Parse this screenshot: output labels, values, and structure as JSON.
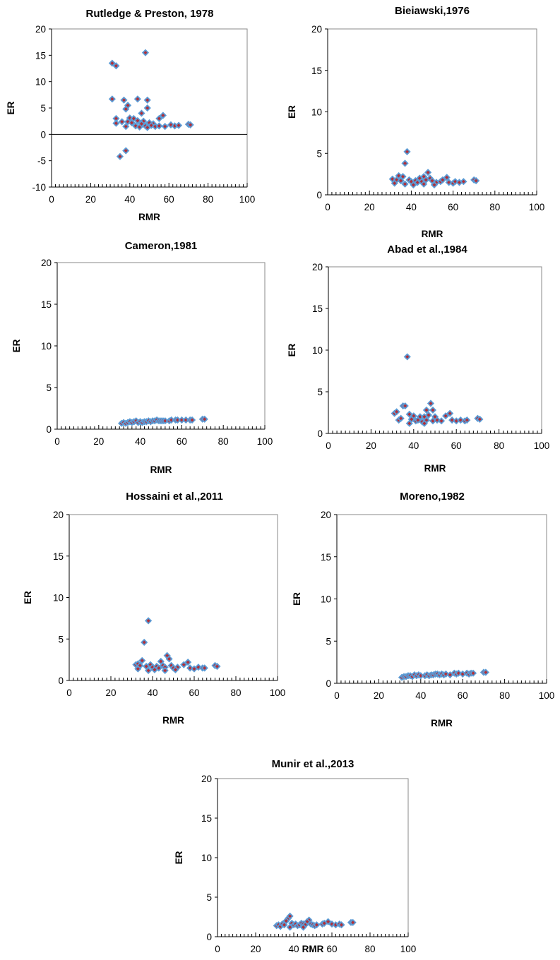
{
  "chart_data": [
    {
      "type": "scatter",
      "title": "Rutledge & Preston, 1978",
      "xlabel": "RMR",
      "ylabel": "ER",
      "xlim": [
        0,
        100
      ],
      "ylim": [
        -10,
        20
      ],
      "xticks": [
        "0",
        "20",
        "40",
        "60",
        "80",
        "100"
      ],
      "yticks": [
        "-10",
        "-5",
        "0",
        "5",
        "10",
        "15",
        "20"
      ],
      "grid": false,
      "marker_colors": {
        "outer": "#5b9bd5",
        "inner": "#b0303a"
      },
      "points": [
        [
          31,
          13.5
        ],
        [
          33,
          13.0
        ],
        [
          48,
          15.5
        ],
        [
          31,
          6.7
        ],
        [
          37,
          6.5
        ],
        [
          44,
          6.7
        ],
        [
          49,
          6.5
        ],
        [
          39,
          5.5
        ],
        [
          38,
          4.8
        ],
        [
          49,
          5.0
        ],
        [
          46,
          4.0
        ],
        [
          33,
          3.0
        ],
        [
          40,
          3.1
        ],
        [
          57,
          3.6
        ],
        [
          55,
          3.0
        ],
        [
          42,
          3.0
        ],
        [
          33,
          2.1
        ],
        [
          36,
          2.4
        ],
        [
          39,
          2.4
        ],
        [
          41,
          2.2
        ],
        [
          44,
          2.6
        ],
        [
          47,
          2.5
        ],
        [
          50,
          2.2
        ],
        [
          52,
          2.0
        ],
        [
          38,
          1.5
        ],
        [
          43,
          1.6
        ],
        [
          45,
          1.4
        ],
        [
          46,
          2.0
        ],
        [
          48,
          1.6
        ],
        [
          49,
          1.3
        ],
        [
          51,
          1.7
        ],
        [
          53,
          1.5
        ],
        [
          55,
          1.6
        ],
        [
          58,
          1.5
        ],
        [
          61,
          1.8
        ],
        [
          63,
          1.6
        ],
        [
          65,
          1.7
        ],
        [
          70,
          1.9
        ],
        [
          71,
          1.8
        ],
        [
          38,
          -3.1
        ],
        [
          35,
          -4.2
        ]
      ]
    },
    {
      "type": "scatter",
      "title": "Bieiawski,1976",
      "xlabel": "RMR",
      "ylabel": "ER",
      "xlim": [
        0,
        100
      ],
      "ylim": [
        0,
        20
      ],
      "xticks": [
        "0",
        "20",
        "40",
        "60",
        "80",
        "100"
      ],
      "yticks": [
        "0",
        "5",
        "10",
        "15",
        "20"
      ],
      "grid": false,
      "points": [
        [
          38,
          5.2
        ],
        [
          37,
          3.8
        ],
        [
          48,
          2.7
        ],
        [
          46,
          2.2
        ],
        [
          34,
          2.3
        ],
        [
          36,
          2.2
        ],
        [
          57,
          2.1
        ],
        [
          31,
          1.9
        ],
        [
          33,
          1.8
        ],
        [
          35,
          1.7
        ],
        [
          39,
          1.8
        ],
        [
          40,
          1.6
        ],
        [
          42,
          1.7
        ],
        [
          43,
          1.5
        ],
        [
          44,
          2.0
        ],
        [
          45,
          1.6
        ],
        [
          47,
          1.8
        ],
        [
          49,
          2.0
        ],
        [
          50,
          1.7
        ],
        [
          52,
          1.5
        ],
        [
          54,
          1.6
        ],
        [
          55,
          1.8
        ],
        [
          58,
          1.5
        ],
        [
          60,
          1.4
        ],
        [
          61,
          1.6
        ],
        [
          63,
          1.5
        ],
        [
          65,
          1.6
        ],
        [
          70,
          1.8
        ],
        [
          71,
          1.7
        ],
        [
          32,
          1.4
        ],
        [
          37,
          1.3
        ],
        [
          41,
          1.2
        ],
        [
          46,
          1.3
        ],
        [
          51,
          1.2
        ]
      ]
    },
    {
      "type": "scatter",
      "title": "Cameron,1981",
      "xlabel": "RMR",
      "ylabel": "ER",
      "xlim": [
        0,
        100
      ],
      "ylim": [
        0,
        20
      ],
      "xticks": [
        "0",
        "20",
        "40",
        "60",
        "80",
        "100"
      ],
      "yticks": [
        "0",
        "5",
        "10",
        "15",
        "20"
      ],
      "grid": false,
      "points": [
        [
          31,
          0.7
        ],
        [
          32,
          0.8
        ],
        [
          33,
          0.7
        ],
        [
          34,
          0.8
        ],
        [
          35,
          0.9
        ],
        [
          36,
          0.8
        ],
        [
          37,
          0.9
        ],
        [
          38,
          1.0
        ],
        [
          39,
          0.8
        ],
        [
          40,
          0.9
        ],
        [
          41,
          0.8
        ],
        [
          42,
          0.9
        ],
        [
          43,
          0.9
        ],
        [
          44,
          1.0
        ],
        [
          45,
          0.9
        ],
        [
          46,
          1.0
        ],
        [
          47,
          1.0
        ],
        [
          48,
          1.1
        ],
        [
          49,
          1.0
        ],
        [
          50,
          1.0
        ],
        [
          51,
          1.0
        ],
        [
          52,
          1.0
        ],
        [
          54,
          1.0
        ],
        [
          55,
          1.1
        ],
        [
          57,
          1.1
        ],
        [
          58,
          1.1
        ],
        [
          60,
          1.1
        ],
        [
          62,
          1.1
        ],
        [
          64,
          1.1
        ],
        [
          65,
          1.1
        ],
        [
          70,
          1.2
        ],
        [
          71,
          1.2
        ]
      ]
    },
    {
      "type": "scatter",
      "title": "Abad et al.,1984",
      "xlabel": "RMR",
      "ylabel": "ER",
      "xlim": [
        0,
        100
      ],
      "ylim": [
        0,
        20
      ],
      "xticks": [
        "0",
        "20",
        "40",
        "60",
        "80",
        "100"
      ],
      "yticks": [
        "0",
        "5",
        "10",
        "15",
        "20"
      ],
      "grid": false,
      "points": [
        [
          37,
          9.2
        ],
        [
          48,
          3.6
        ],
        [
          35,
          3.3
        ],
        [
          36,
          3.3
        ],
        [
          46,
          2.8
        ],
        [
          31,
          2.4
        ],
        [
          32,
          2.6
        ],
        [
          49,
          2.8
        ],
        [
          57,
          2.4
        ],
        [
          38,
          2.3
        ],
        [
          40,
          2.1
        ],
        [
          43,
          2.0
        ],
        [
          45,
          2.0
        ],
        [
          47,
          2.2
        ],
        [
          50,
          2.0
        ],
        [
          55,
          2.1
        ],
        [
          33,
          1.6
        ],
        [
          34,
          1.8
        ],
        [
          39,
          1.7
        ],
        [
          41,
          1.5
        ],
        [
          42,
          1.6
        ],
        [
          44,
          1.4
        ],
        [
          46,
          1.6
        ],
        [
          49,
          1.5
        ],
        [
          51,
          1.6
        ],
        [
          53,
          1.5
        ],
        [
          58,
          1.6
        ],
        [
          60,
          1.5
        ],
        [
          62,
          1.6
        ],
        [
          64,
          1.5
        ],
        [
          65,
          1.6
        ],
        [
          70,
          1.8
        ],
        [
          71,
          1.7
        ],
        [
          38,
          1.2
        ],
        [
          45,
          1.2
        ]
      ]
    },
    {
      "type": "scatter",
      "title": "Hossaini et al.,2011",
      "xlabel": "RMR",
      "ylabel": "ER",
      "xlim": [
        0,
        100
      ],
      "ylim": [
        0,
        20
      ],
      "xticks": [
        "0",
        "20",
        "40",
        "60",
        "80",
        "100"
      ],
      "yticks": [
        "0",
        "5",
        "10",
        "15",
        "20"
      ],
      "grid": false,
      "points": [
        [
          38,
          7.2
        ],
        [
          36,
          4.6
        ],
        [
          47,
          3.0
        ],
        [
          48,
          2.6
        ],
        [
          35,
          2.4
        ],
        [
          44,
          2.3
        ],
        [
          57,
          2.2
        ],
        [
          32,
          1.9
        ],
        [
          33,
          2.0
        ],
        [
          34,
          1.8
        ],
        [
          37,
          1.7
        ],
        [
          39,
          1.9
        ],
        [
          40,
          1.6
        ],
        [
          42,
          1.7
        ],
        [
          43,
          1.5
        ],
        [
          45,
          1.8
        ],
        [
          46,
          1.6
        ],
        [
          49,
          1.8
        ],
        [
          50,
          1.5
        ],
        [
          52,
          1.6
        ],
        [
          55,
          1.9
        ],
        [
          58,
          1.5
        ],
        [
          60,
          1.4
        ],
        [
          62,
          1.6
        ],
        [
          64,
          1.5
        ],
        [
          65,
          1.5
        ],
        [
          70,
          1.8
        ],
        [
          71,
          1.7
        ],
        [
          33,
          1.4
        ],
        [
          38,
          1.2
        ],
        [
          41,
          1.3
        ],
        [
          46,
          1.2
        ],
        [
          51,
          1.3
        ]
      ]
    },
    {
      "type": "scatter",
      "title": "Moreno,1982",
      "xlabel": "RMR",
      "ylabel": "ER",
      "xlim": [
        0,
        100
      ],
      "ylim": [
        0,
        20
      ],
      "xticks": [
        "0",
        "20",
        "40",
        "60",
        "80",
        "100"
      ],
      "yticks": [
        "0",
        "5",
        "10",
        "15",
        "20"
      ],
      "grid": false,
      "points": [
        [
          31,
          0.7
        ],
        [
          32,
          0.8
        ],
        [
          33,
          0.8
        ],
        [
          34,
          0.9
        ],
        [
          35,
          0.9
        ],
        [
          36,
          0.8
        ],
        [
          37,
          1.0
        ],
        [
          38,
          0.9
        ],
        [
          39,
          1.0
        ],
        [
          40,
          0.9
        ],
        [
          42,
          0.9
        ],
        [
          43,
          1.0
        ],
        [
          44,
          0.9
        ],
        [
          45,
          1.0
        ],
        [
          46,
          1.0
        ],
        [
          47,
          1.1
        ],
        [
          48,
          1.1
        ],
        [
          49,
          1.0
        ],
        [
          50,
          1.1
        ],
        [
          51,
          1.0
        ],
        [
          52,
          1.1
        ],
        [
          54,
          1.0
        ],
        [
          56,
          1.2
        ],
        [
          57,
          1.1
        ],
        [
          58,
          1.2
        ],
        [
          60,
          1.1
        ],
        [
          62,
          1.2
        ],
        [
          63,
          1.1
        ],
        [
          64,
          1.2
        ],
        [
          65,
          1.2
        ],
        [
          70,
          1.3
        ],
        [
          71,
          1.3
        ]
      ]
    },
    {
      "type": "scatter",
      "title": "Munir et al.,2013",
      "xlabel": "RMR",
      "ylabel": "ER",
      "xlim": [
        0,
        100
      ],
      "ylim": [
        0,
        20
      ],
      "xticks": [
        "0",
        "20",
        "40",
        "60",
        "80",
        "100"
      ],
      "yticks": [
        "0",
        "5",
        "10",
        "15",
        "20"
      ],
      "grid": false,
      "points": [
        [
          37,
          2.3
        ],
        [
          38,
          2.6
        ],
        [
          36,
          2.0
        ],
        [
          48,
          2.1
        ],
        [
          47,
          1.9
        ],
        [
          58,
          1.9
        ],
        [
          31,
          1.4
        ],
        [
          32,
          1.5
        ],
        [
          33,
          1.3
        ],
        [
          34,
          1.6
        ],
        [
          35,
          1.5
        ],
        [
          39,
          1.7
        ],
        [
          40,
          1.5
        ],
        [
          41,
          1.6
        ],
        [
          42,
          1.4
        ],
        [
          43,
          1.5
        ],
        [
          44,
          1.7
        ],
        [
          45,
          1.6
        ],
        [
          46,
          1.5
        ],
        [
          49,
          1.6
        ],
        [
          50,
          1.5
        ],
        [
          51,
          1.4
        ],
        [
          52,
          1.5
        ],
        [
          55,
          1.6
        ],
        [
          56,
          1.7
        ],
        [
          60,
          1.6
        ],
        [
          62,
          1.5
        ],
        [
          64,
          1.6
        ],
        [
          65,
          1.5
        ],
        [
          70,
          1.8
        ],
        [
          71,
          1.8
        ],
        [
          38,
          1.2
        ],
        [
          45,
          1.2
        ]
      ]
    }
  ]
}
